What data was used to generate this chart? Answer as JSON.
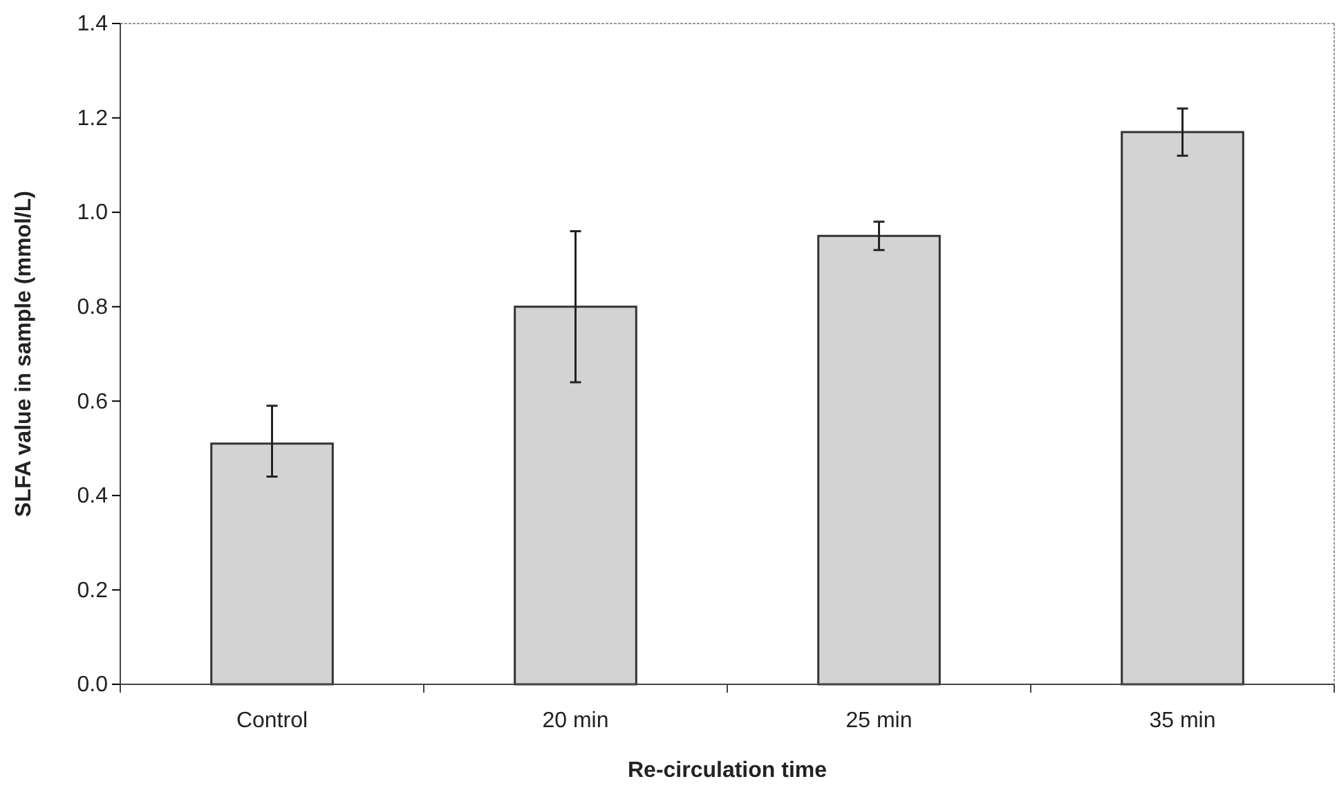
{
  "chart_data": {
    "type": "bar",
    "xlabel": "Re-circulation time",
    "ylabel": "SLFA value in sample (mmol/L)",
    "categories": [
      "Control",
      "20 min",
      "25 min",
      "35 min"
    ],
    "values": [
      0.51,
      0.8,
      0.95,
      1.17
    ],
    "errors": [
      [
        0.44,
        0.59
      ],
      [
        0.64,
        0.96
      ],
      [
        0.92,
        0.98
      ],
      [
        1.12,
        1.22
      ]
    ],
    "color": "#d3d3d3",
    "ylim": [
      0,
      1.4
    ],
    "yticks": [
      {
        "value": 0,
        "label": "0.0"
      },
      {
        "value": 0.2,
        "label": "0.2"
      },
      {
        "value": 0.4,
        "label": "0.4"
      },
      {
        "value": 0.6,
        "label": "0.6"
      },
      {
        "value": 0.8,
        "label": "0.8"
      },
      {
        "value": 1.0,
        "label": "1.0"
      },
      {
        "value": 1.2,
        "label": "1.2"
      },
      {
        "value": 1.4,
        "label": "1.4"
      }
    ],
    "grid": false
  }
}
